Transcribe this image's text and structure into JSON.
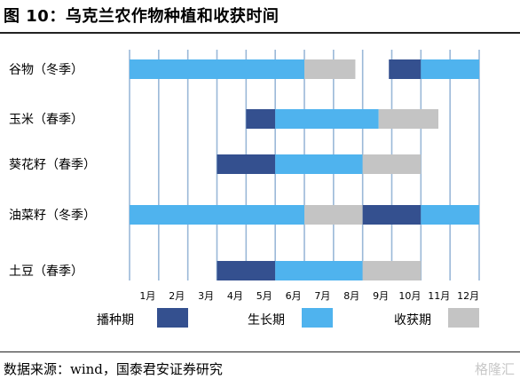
{
  "figure": {
    "title": "图 10：乌克兰农作物种植和收获时间",
    "source": "数据来源：wind，国泰君安证券研究",
    "watermark": "格隆汇"
  },
  "colors": {
    "sowing": "#34508f",
    "growing": "#4fb3ee",
    "harvest": "#c4c4c4",
    "gridline": "#9ab8d8"
  },
  "chart_data": {
    "type": "gantt",
    "title": "",
    "months": [
      "1月",
      "2月",
      "3月",
      "4月",
      "5月",
      "6月",
      "7月",
      "8月",
      "9月",
      "10月",
      "11月",
      "12月"
    ],
    "crops": [
      "谷物（冬季）",
      "玉米（春季）",
      "葵花籽（春季）",
      "油菜籽（冬季）",
      "土豆（春季）"
    ],
    "legend": [
      "播种期",
      "生长期",
      "收获期"
    ],
    "segments": [
      {
        "crop": "谷物（冬季）",
        "phase": "生长期",
        "start": 0,
        "end": 6
      },
      {
        "crop": "谷物（冬季）",
        "phase": "收获期",
        "start": 6,
        "end": 7.75
      },
      {
        "crop": "谷物（冬季）",
        "phase": "播种期",
        "start": 8.9,
        "end": 10
      },
      {
        "crop": "谷物（冬季）",
        "phase": "生长期",
        "start": 10,
        "end": 12
      },
      {
        "crop": "玉米（春季）",
        "phase": "播种期",
        "start": 4,
        "end": 5
      },
      {
        "crop": "玉米（春季）",
        "phase": "生长期",
        "start": 5,
        "end": 8.55
      },
      {
        "crop": "玉米（春季）",
        "phase": "收获期",
        "start": 8.55,
        "end": 10.6
      },
      {
        "crop": "葵花籽（春季）",
        "phase": "播种期",
        "start": 3,
        "end": 5
      },
      {
        "crop": "葵花籽（春季）",
        "phase": "生长期",
        "start": 5,
        "end": 8
      },
      {
        "crop": "葵花籽（春季）",
        "phase": "收获期",
        "start": 8,
        "end": 10
      },
      {
        "crop": "油菜籽（冬季）",
        "phase": "生长期",
        "start": 0,
        "end": 6
      },
      {
        "crop": "油菜籽（冬季）",
        "phase": "收获期",
        "start": 6,
        "end": 8
      },
      {
        "crop": "油菜籽（冬季）",
        "phase": "播种期",
        "start": 8,
        "end": 10
      },
      {
        "crop": "油菜籽（冬季）",
        "phase": "生长期",
        "start": 10,
        "end": 12
      },
      {
        "crop": "土豆（春季）",
        "phase": "播种期",
        "start": 3,
        "end": 5
      },
      {
        "crop": "土豆（春季）",
        "phase": "生长期",
        "start": 5,
        "end": 8
      },
      {
        "crop": "土豆（春季）",
        "phase": "收获期",
        "start": 8,
        "end": 10
      }
    ]
  }
}
